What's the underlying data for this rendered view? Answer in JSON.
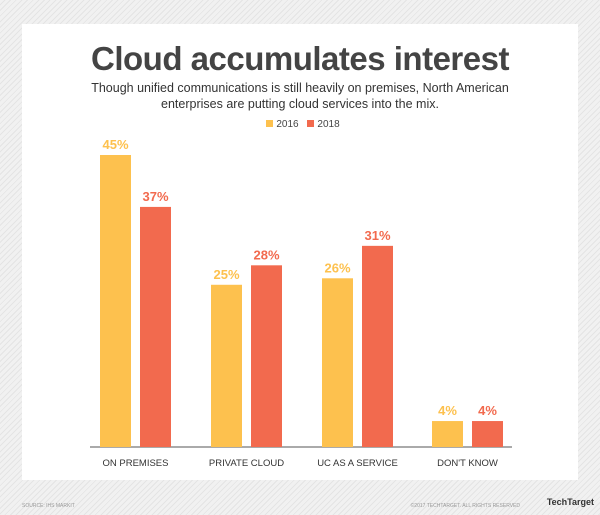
{
  "chart_data": {
    "type": "bar",
    "title": "Cloud accumulates interest",
    "subtitle": "Though unified communications is still heavily on premises, North American enterprises are putting cloud services into the mix.",
    "categories": [
      "ON PREMISES",
      "PRIVATE CLOUD",
      "UC AS A SERVICE",
      "DON'T KNOW"
    ],
    "series": [
      {
        "name": "2016",
        "values": [
          45,
          25,
          26,
          4
        ],
        "labels": [
          "45%",
          "25%",
          "26%",
          "4%"
        ],
        "color": "#FDC14E"
      },
      {
        "name": "2018",
        "values": [
          37,
          28,
          31,
          4
        ],
        "labels": [
          "37%",
          "28%",
          "31%",
          "4%"
        ],
        "color": "#F26A4E"
      }
    ],
    "ylim": [
      0,
      45
    ],
    "grid": false,
    "legend": "top-center",
    "yaxis_shown": false
  },
  "footer": {
    "source": "SOURCE: IHS MARKIT",
    "copyright": "©2017 TECHTARGET. ALL RIGHTS RESERVED",
    "logo": "TechTarget"
  }
}
